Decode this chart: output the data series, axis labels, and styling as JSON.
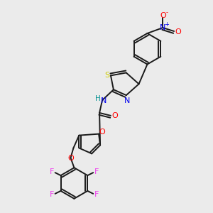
{
  "bg_color": "#ebebeb",
  "bond_color": "#1a1a1a",
  "atom_colors": {
    "S": "#cccc00",
    "N": "#0000ee",
    "O": "#ff0000",
    "F": "#ee44ee",
    "H": "#009090",
    "C": "#1a1a1a"
  },
  "bond_lw": 1.4,
  "font_size": 7.5
}
